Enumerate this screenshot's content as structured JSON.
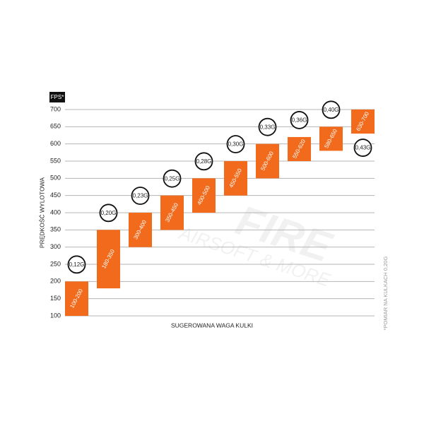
{
  "chart_data": {
    "type": "floating-bar",
    "unit_tag": "FPS*",
    "ylabel": "PRĘDKOŚĆ WYLOTOWA",
    "xlabel": "SUGEROWANA WAGA KULKI",
    "footnote": "*POMIAR NA KULKACH 0,20G",
    "watermark": [
      "FIRE",
      "AIRSOFT & MORE"
    ],
    "categories": [
      "0,12G",
      "0,20G",
      "0,23G",
      "0,25G",
      "0,28G",
      "0,30G",
      "0,33G",
      "0,36G",
      "0,40G",
      "0,43G"
    ],
    "low": [
      100,
      180,
      300,
      350,
      400,
      450,
      500,
      550,
      580,
      630
    ],
    "high": [
      200,
      350,
      400,
      450,
      500,
      550,
      600,
      620,
      650,
      700
    ],
    "value_labels": [
      "100-200",
      "180-350",
      "300-400",
      "350-450",
      "400-500",
      "450-550",
      "500-600",
      "550-620",
      "580-650",
      "630-700"
    ],
    "color": "#f26a1b",
    "ylim": [
      100,
      700
    ],
    "yticks": [
      100,
      150,
      200,
      250,
      300,
      350,
      400,
      450,
      500,
      550,
      600,
      650,
      700
    ],
    "grid": true
  }
}
